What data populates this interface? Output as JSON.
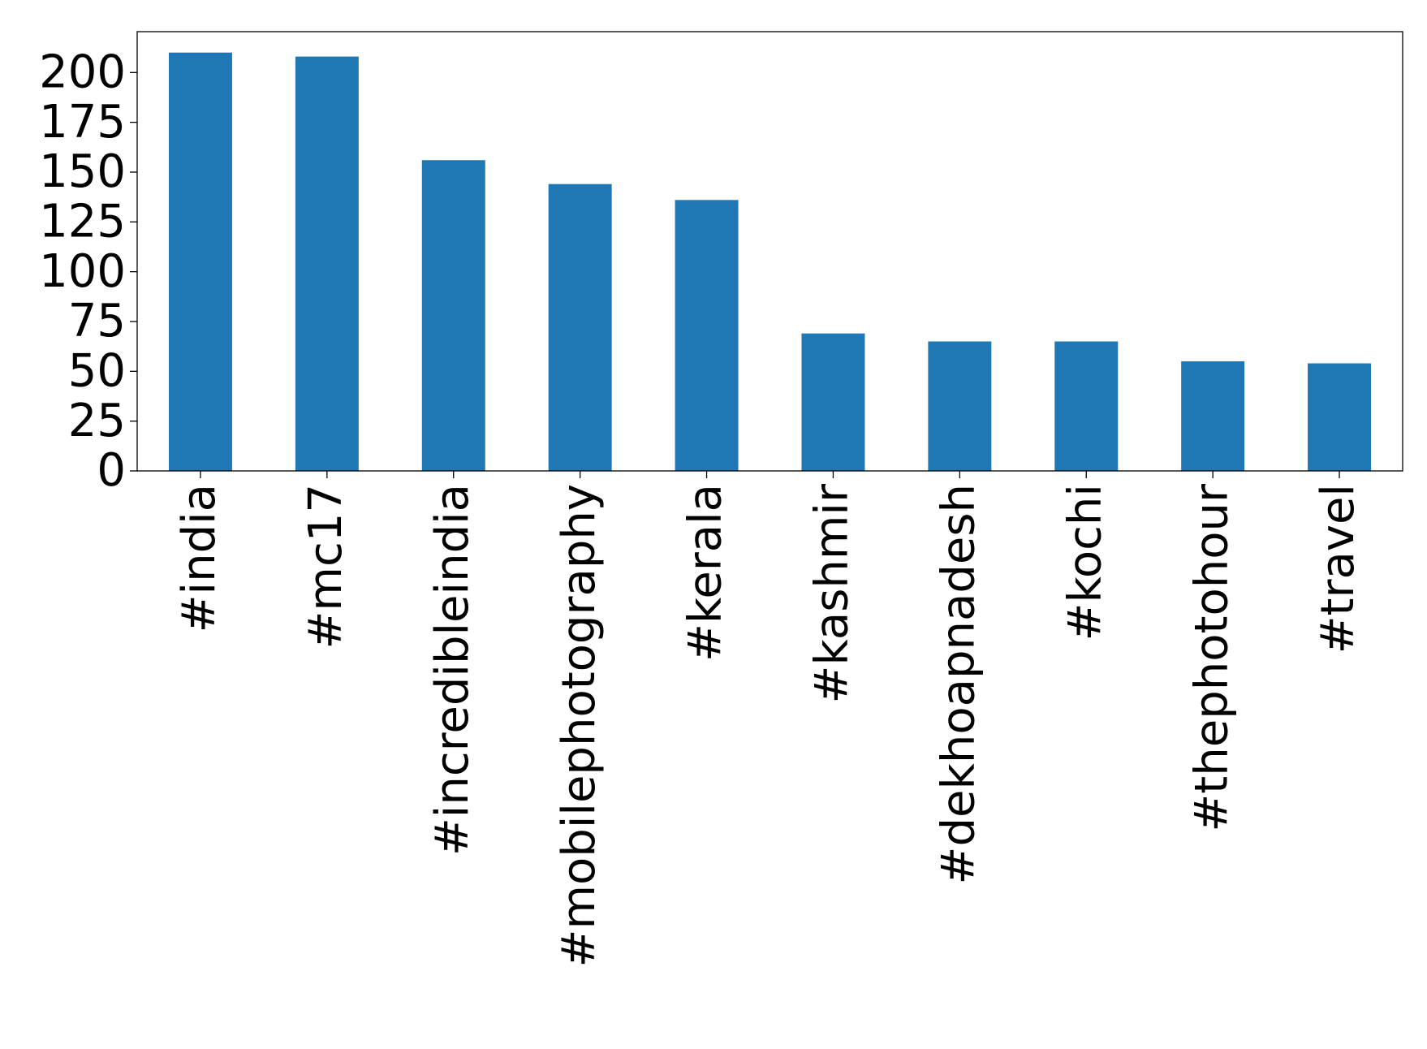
{
  "chart_data": {
    "type": "bar",
    "categories": [
      "#india",
      "#mc17",
      "#incredibleindia",
      "#mobilephotography",
      "#kerala",
      "#kashmir",
      "#dekhoapnadesh",
      "#kochi",
      "#thephotohour",
      "#travel"
    ],
    "values": [
      210,
      208,
      156,
      144,
      136,
      69,
      65,
      65,
      55,
      54
    ],
    "color": "#1f77b4",
    "ylim": [
      0,
      220.5
    ],
    "yticks": [
      0,
      25,
      50,
      75,
      100,
      125,
      150,
      175,
      200
    ],
    "grid": false
  }
}
